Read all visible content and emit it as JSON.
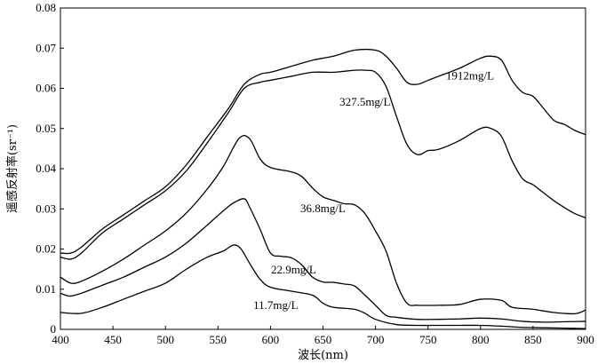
{
  "chart_data": {
    "type": "line",
    "title": "",
    "xlabel": "波长(nm)",
    "ylabel": "遥感反射率(sr⁻¹)",
    "xlim": [
      400,
      900
    ],
    "ylim": [
      0,
      0.08
    ],
    "x_ticks": [
      400,
      450,
      500,
      550,
      600,
      650,
      700,
      750,
      800,
      850,
      900
    ],
    "x_tick_labels": [
      "400",
      "450",
      "500",
      "550",
      "600",
      "650",
      "700",
      "750",
      "800",
      "850",
      "900"
    ],
    "y_ticks": [
      0,
      0.01,
      0.02,
      0.03,
      0.04,
      0.05,
      0.06,
      0.07,
      0.08
    ],
    "y_tick_labels": [
      "0",
      "0.01",
      "0.02",
      "0.03",
      "0.04",
      "0.05",
      "0.06",
      "0.07",
      "0.08"
    ],
    "grid": false,
    "series": [
      {
        "name": "1912mg/L",
        "points": [
          [
            400,
            0.019
          ],
          [
            410,
            0.019
          ],
          [
            420,
            0.0205
          ],
          [
            440,
            0.025
          ],
          [
            460,
            0.0285
          ],
          [
            480,
            0.032
          ],
          [
            500,
            0.0355
          ],
          [
            520,
            0.041
          ],
          [
            540,
            0.048
          ],
          [
            560,
            0.055
          ],
          [
            575,
            0.061
          ],
          [
            590,
            0.0635
          ],
          [
            600,
            0.064
          ],
          [
            620,
            0.0655
          ],
          [
            640,
            0.067
          ],
          [
            660,
            0.068
          ],
          [
            680,
            0.0695
          ],
          [
            700,
            0.0695
          ],
          [
            710,
            0.068
          ],
          [
            720,
            0.065
          ],
          [
            730,
            0.0615
          ],
          [
            740,
            0.061
          ],
          [
            750,
            0.062
          ],
          [
            760,
            0.063
          ],
          [
            780,
            0.065
          ],
          [
            800,
            0.0675
          ],
          [
            810,
            0.068
          ],
          [
            820,
            0.067
          ],
          [
            830,
            0.062
          ],
          [
            840,
            0.059
          ],
          [
            850,
            0.058
          ],
          [
            860,
            0.055
          ],
          [
            870,
            0.052
          ],
          [
            880,
            0.051
          ],
          [
            890,
            0.0495
          ],
          [
            900,
            0.0485
          ]
        ]
      },
      {
        "name": "327.5mg/L",
        "points": [
          [
            400,
            0.018
          ],
          [
            410,
            0.0175
          ],
          [
            420,
            0.019
          ],
          [
            440,
            0.024
          ],
          [
            460,
            0.0275
          ],
          [
            480,
            0.031
          ],
          [
            500,
            0.0345
          ],
          [
            520,
            0.0395
          ],
          [
            540,
            0.0465
          ],
          [
            560,
            0.054
          ],
          [
            575,
            0.06
          ],
          [
            590,
            0.0615
          ],
          [
            600,
            0.062
          ],
          [
            620,
            0.063
          ],
          [
            640,
            0.064
          ],
          [
            660,
            0.064
          ],
          [
            680,
            0.0645
          ],
          [
            690,
            0.0645
          ],
          [
            700,
            0.064
          ],
          [
            710,
            0.0605
          ],
          [
            720,
            0.053
          ],
          [
            730,
            0.046
          ],
          [
            740,
            0.0435
          ],
          [
            750,
            0.0445
          ],
          [
            760,
            0.0448
          ],
          [
            780,
            0.047
          ],
          [
            800,
            0.05
          ],
          [
            810,
            0.05
          ],
          [
            820,
            0.048
          ],
          [
            830,
            0.042
          ],
          [
            840,
            0.0375
          ],
          [
            850,
            0.036
          ],
          [
            860,
            0.034
          ],
          [
            870,
            0.032
          ],
          [
            880,
            0.0303
          ],
          [
            890,
            0.0288
          ],
          [
            900,
            0.0278
          ]
        ]
      },
      {
        "name": "36.8mg/L",
        "points": [
          [
            400,
            0.013
          ],
          [
            410,
            0.0115
          ],
          [
            420,
            0.012
          ],
          [
            440,
            0.0145
          ],
          [
            460,
            0.0175
          ],
          [
            480,
            0.021
          ],
          [
            500,
            0.0245
          ],
          [
            520,
            0.029
          ],
          [
            540,
            0.035
          ],
          [
            555,
            0.0405
          ],
          [
            570,
            0.0475
          ],
          [
            580,
            0.0475
          ],
          [
            590,
            0.0425
          ],
          [
            600,
            0.0403
          ],
          [
            620,
            0.0392
          ],
          [
            630,
            0.038
          ],
          [
            640,
            0.0352
          ],
          [
            650,
            0.033
          ],
          [
            660,
            0.0321
          ],
          [
            670,
            0.0313
          ],
          [
            680,
            0.031
          ],
          [
            690,
            0.0288
          ],
          [
            700,
            0.0245
          ],
          [
            710,
            0.0195
          ],
          [
            720,
            0.0115
          ],
          [
            730,
            0.0065
          ],
          [
            740,
            0.006
          ],
          [
            760,
            0.006
          ],
          [
            780,
            0.0062
          ],
          [
            800,
            0.0075
          ],
          [
            820,
            0.0072
          ],
          [
            830,
            0.0055
          ],
          [
            850,
            0.005
          ],
          [
            870,
            0.0042
          ],
          [
            890,
            0.0039
          ],
          [
            900,
            0.0048
          ]
        ]
      },
      {
        "name": "22.9mg/L",
        "points": [
          [
            400,
            0.009
          ],
          [
            405,
            0.0085
          ],
          [
            410,
            0.0083
          ],
          [
            420,
            0.009
          ],
          [
            440,
            0.011
          ],
          [
            460,
            0.013
          ],
          [
            480,
            0.0155
          ],
          [
            500,
            0.018
          ],
          [
            520,
            0.0215
          ],
          [
            540,
            0.026
          ],
          [
            555,
            0.0295
          ],
          [
            565,
            0.0315
          ],
          [
            575,
            0.0325
          ],
          [
            580,
            0.0305
          ],
          [
            590,
            0.025
          ],
          [
            600,
            0.019
          ],
          [
            610,
            0.0182
          ],
          [
            620,
            0.0178
          ],
          [
            630,
            0.016
          ],
          [
            640,
            0.013
          ],
          [
            650,
            0.0118
          ],
          [
            660,
            0.0117
          ],
          [
            670,
            0.0113
          ],
          [
            680,
            0.0108
          ],
          [
            690,
            0.0085
          ],
          [
            700,
            0.006
          ],
          [
            710,
            0.0035
          ],
          [
            720,
            0.003
          ],
          [
            740,
            0.0025
          ],
          [
            760,
            0.0025
          ],
          [
            780,
            0.0026
          ],
          [
            800,
            0.0028
          ],
          [
            820,
            0.0026
          ],
          [
            840,
            0.002
          ],
          [
            860,
            0.0018
          ],
          [
            880,
            0.0019
          ],
          [
            900,
            0.002
          ]
        ]
      },
      {
        "name": "11.7mg/L",
        "points": [
          [
            400,
            0.0042
          ],
          [
            420,
            0.004
          ],
          [
            440,
            0.0055
          ],
          [
            460,
            0.0075
          ],
          [
            480,
            0.0095
          ],
          [
            500,
            0.0115
          ],
          [
            520,
            0.015
          ],
          [
            540,
            0.018
          ],
          [
            555,
            0.0195
          ],
          [
            565,
            0.021
          ],
          [
            572,
            0.02
          ],
          [
            580,
            0.0165
          ],
          [
            590,
            0.0125
          ],
          [
            600,
            0.0105
          ],
          [
            620,
            0.0095
          ],
          [
            640,
            0.0085
          ],
          [
            650,
            0.0065
          ],
          [
            660,
            0.0055
          ],
          [
            680,
            0.005
          ],
          [
            690,
            0.004
          ],
          [
            700,
            0.0025
          ],
          [
            720,
            0.0012
          ],
          [
            740,
            0.001
          ],
          [
            760,
            0.001
          ],
          [
            780,
            0.001
          ],
          [
            800,
            0.001
          ],
          [
            820,
            0.0008
          ],
          [
            840,
            0.0005
          ],
          [
            860,
            0.0004
          ],
          [
            880,
            0.0003
          ],
          [
            900,
            0.0002
          ]
        ]
      }
    ],
    "annotations": [
      {
        "series": "1912mg/L",
        "text": "1912mg/L",
        "x": 790,
        "y": 0.0622
      },
      {
        "series": "327.5mg/L",
        "text": "327.5mg/L",
        "x": 690,
        "y": 0.0557
      },
      {
        "series": "36.8mg/L",
        "text": "36.8mg/L",
        "x": 650,
        "y": 0.0292
      },
      {
        "series": "22.9mg/L",
        "text": "22.9mg/L",
        "x": 622,
        "y": 0.0139
      },
      {
        "series": "11.7mg/L",
        "text": "11.7mg/L",
        "x": 605,
        "y": 0.0051
      }
    ]
  }
}
